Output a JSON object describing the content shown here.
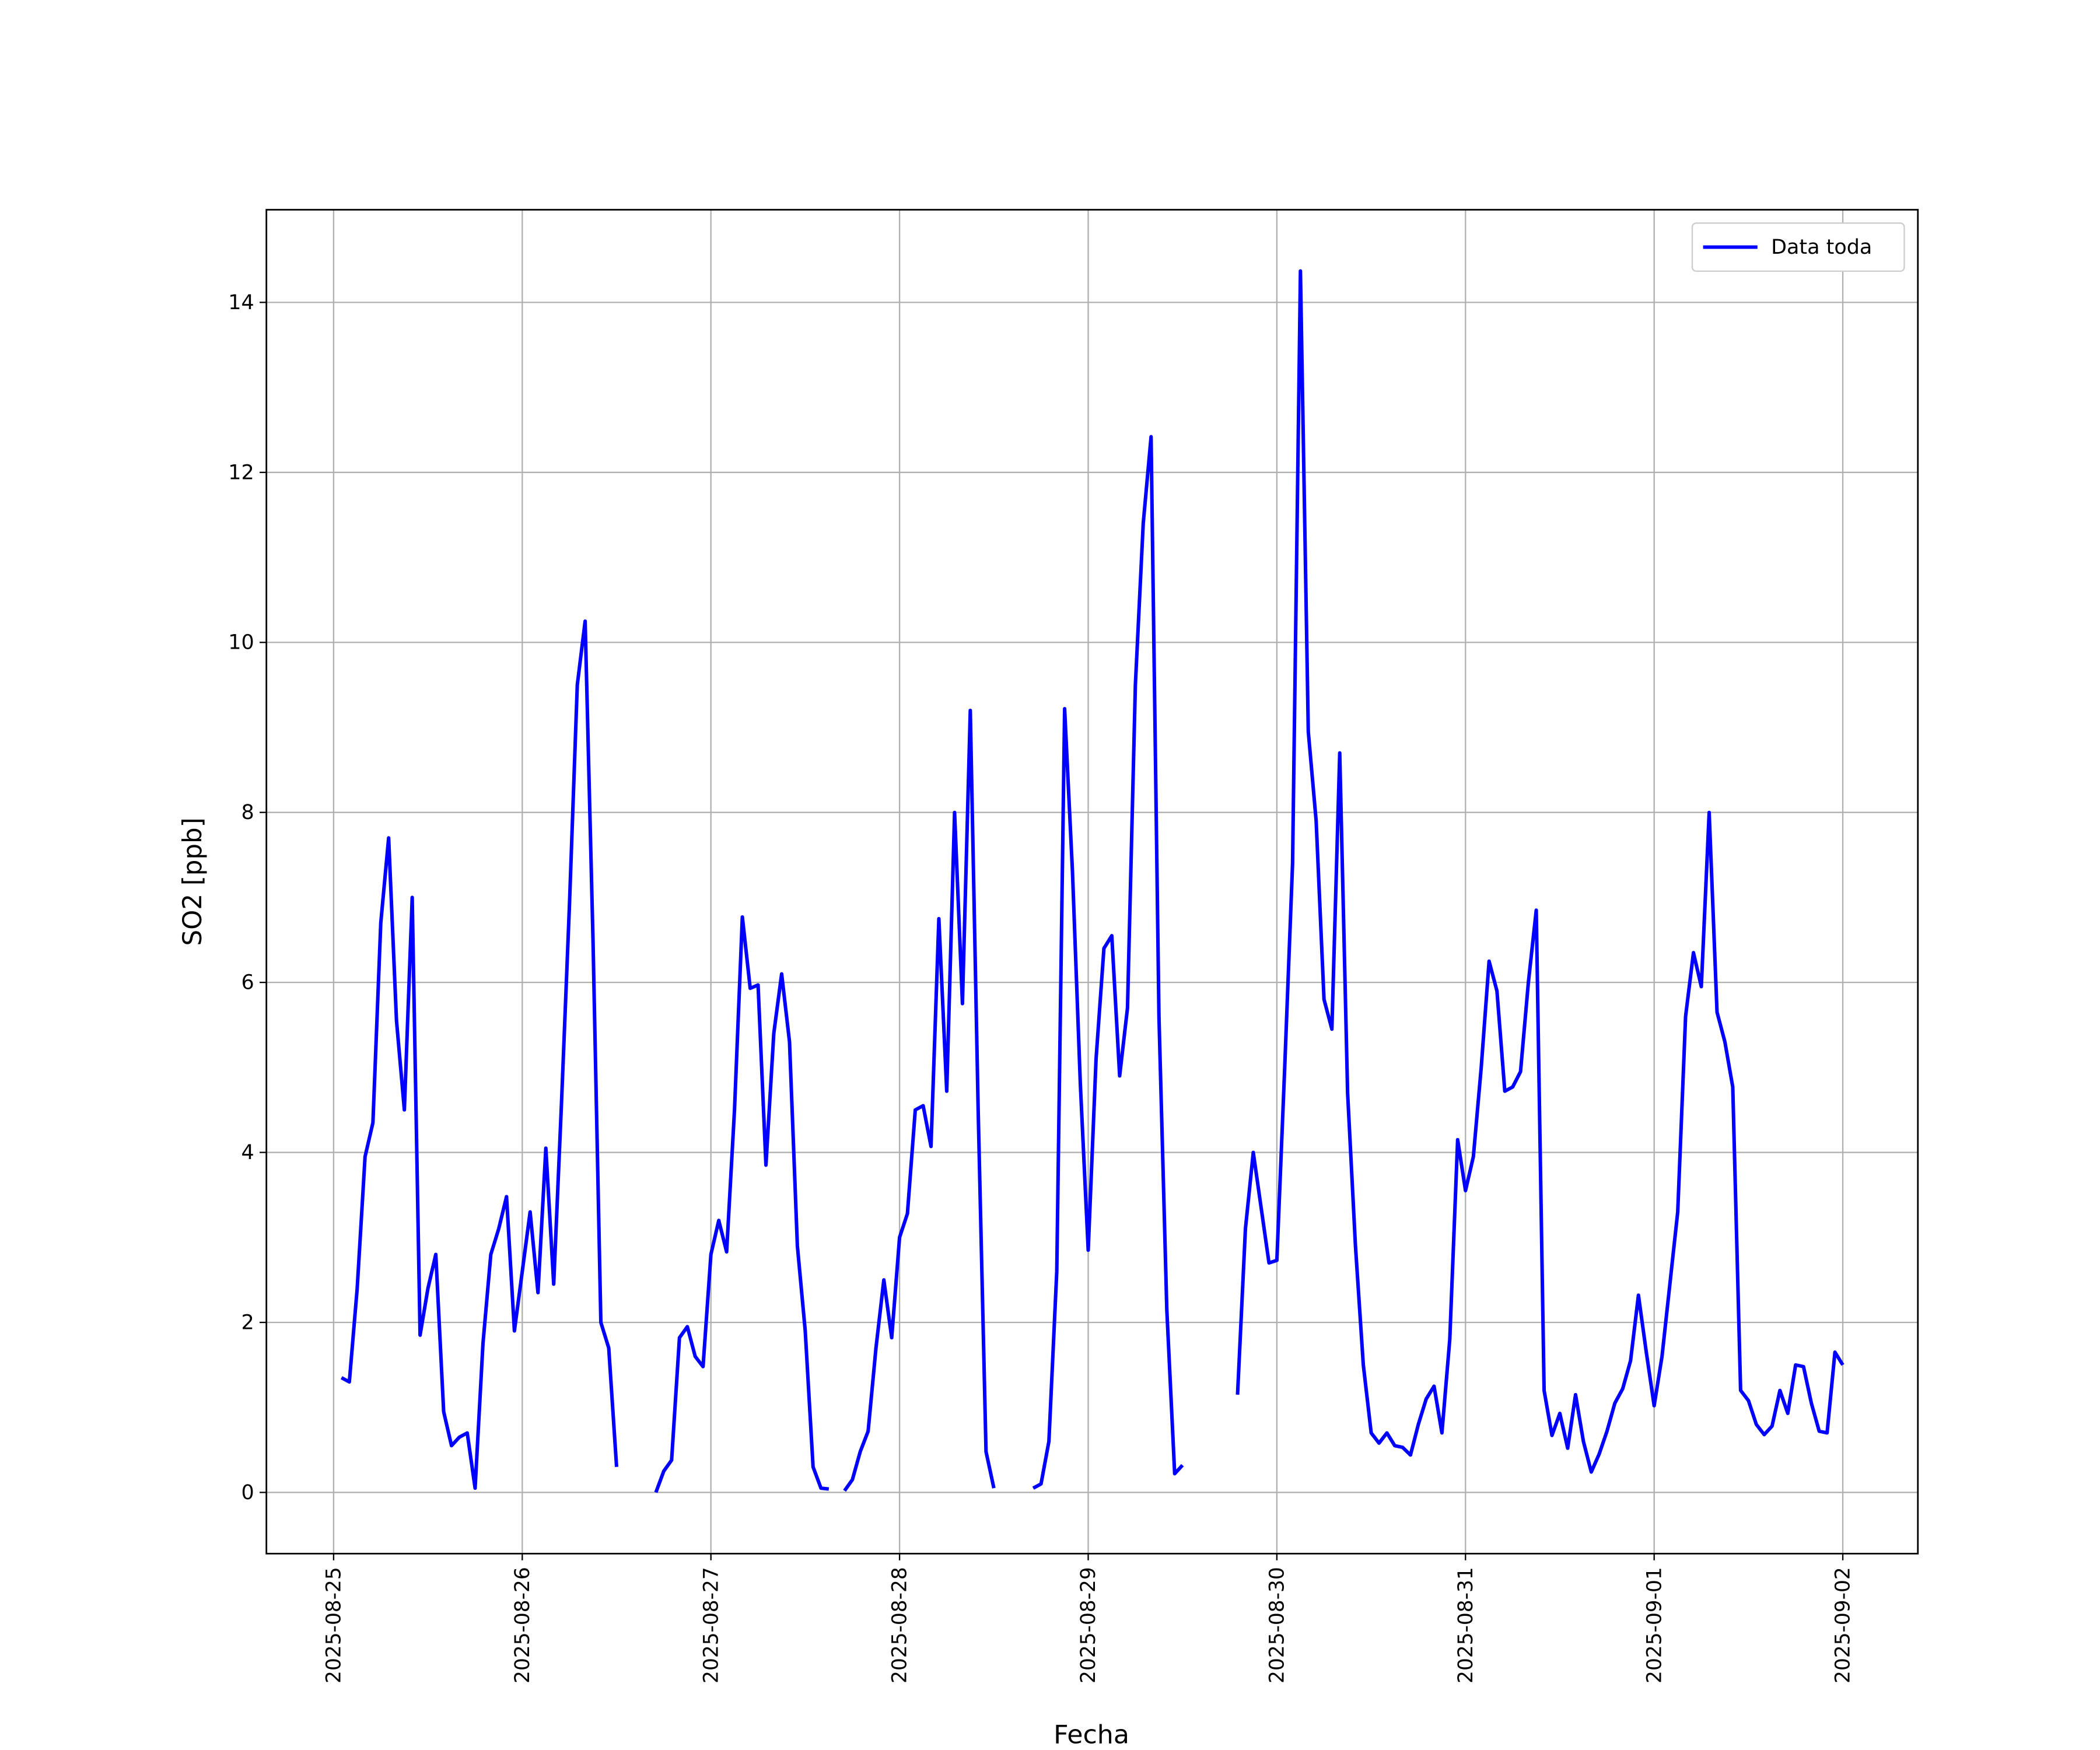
{
  "chart_data": {
    "type": "line",
    "x_label": "Fecha",
    "y_label": "SO2 [ppb]",
    "x": [
      "2025-08-25 01:00",
      "2025-08-25 02:00",
      "2025-08-25 03:00",
      "2025-08-25 04:00",
      "2025-08-25 05:00",
      "2025-08-25 06:00",
      "2025-08-25 07:00",
      "2025-08-25 08:00",
      "2025-08-25 09:00",
      "2025-08-25 10:00",
      "2025-08-25 11:00",
      "2025-08-25 12:00",
      "2025-08-25 13:00",
      "2025-08-25 14:00",
      "2025-08-25 15:00",
      "2025-08-25 16:00",
      "2025-08-25 17:00",
      "2025-08-25 18:00",
      "2025-08-25 19:00",
      "2025-08-25 20:00",
      "2025-08-25 21:00",
      "2025-08-25 22:00",
      "2025-08-25 23:00",
      "2025-08-26 00:00",
      "2025-08-26 01:00",
      "2025-08-26 02:00",
      "2025-08-26 03:00",
      "2025-08-26 04:00",
      "2025-08-26 05:00",
      "2025-08-26 06:00",
      "2025-08-26 07:00",
      "2025-08-26 08:00",
      "2025-08-26 09:00",
      "2025-08-26 10:00",
      "2025-08-26 11:00",
      "2025-08-26 12:00",
      "2025-08-26 13:00",
      "2025-08-26 14:00",
      "2025-08-26 15:00",
      "2025-08-26 16:00",
      "2025-08-26 17:00",
      "2025-08-26 18:00",
      "2025-08-26 19:00",
      "2025-08-26 20:00",
      "2025-08-26 21:00",
      "2025-08-26 22:00",
      "2025-08-26 23:00",
      "2025-08-27 00:00",
      "2025-08-27 01:00",
      "2025-08-27 02:00",
      "2025-08-27 03:00",
      "2025-08-27 04:00",
      "2025-08-27 05:00",
      "2025-08-27 06:00",
      "2025-08-27 07:00",
      "2025-08-27 08:00",
      "2025-08-27 09:00",
      "2025-08-27 10:00",
      "2025-08-27 11:00",
      "2025-08-27 12:00",
      "2025-08-27 13:00",
      "2025-08-27 14:00",
      "2025-08-27 15:00",
      "2025-08-27 16:00",
      "2025-08-27 17:00",
      "2025-08-27 18:00",
      "2025-08-27 19:00",
      "2025-08-27 20:00",
      "2025-08-27 21:00",
      "2025-08-27 22:00",
      "2025-08-27 23:00",
      "2025-08-28 00:00",
      "2025-08-28 01:00",
      "2025-08-28 02:00",
      "2025-08-28 03:00",
      "2025-08-28 04:00",
      "2025-08-28 05:00",
      "2025-08-28 06:00",
      "2025-08-28 07:00",
      "2025-08-28 08:00",
      "2025-08-28 09:00",
      "2025-08-28 10:00",
      "2025-08-28 11:00",
      "2025-08-28 12:00",
      "2025-08-28 13:00",
      "2025-08-28 14:00",
      "2025-08-28 15:00",
      "2025-08-28 16:00",
      "2025-08-28 17:00",
      "2025-08-28 18:00",
      "2025-08-28 19:00",
      "2025-08-28 20:00",
      "2025-08-28 21:00",
      "2025-08-28 22:00",
      "2025-08-28 23:00",
      "2025-08-29 00:00",
      "2025-08-29 01:00",
      "2025-08-29 02:00",
      "2025-08-29 03:00",
      "2025-08-29 04:00",
      "2025-08-29 05:00",
      "2025-08-29 06:00",
      "2025-08-29 07:00",
      "2025-08-29 08:00",
      "2025-08-29 09:00",
      "2025-08-29 10:00",
      "2025-08-29 11:00",
      "2025-08-29 12:00",
      "2025-08-29 13:00",
      "2025-08-29 14:00",
      "2025-08-29 15:00",
      "2025-08-29 16:00",
      "2025-08-29 17:00",
      "2025-08-29 18:00",
      "2025-08-29 19:00",
      "2025-08-29 20:00",
      "2025-08-29 21:00",
      "2025-08-29 22:00",
      "2025-08-29 23:00",
      "2025-08-30 00:00",
      "2025-08-30 01:00",
      "2025-08-30 02:00",
      "2025-08-30 03:00",
      "2025-08-30 04:00",
      "2025-08-30 05:00",
      "2025-08-30 06:00",
      "2025-08-30 07:00",
      "2025-08-30 08:00",
      "2025-08-30 09:00",
      "2025-08-30 10:00",
      "2025-08-30 11:00",
      "2025-08-30 12:00",
      "2025-08-30 13:00",
      "2025-08-30 14:00",
      "2025-08-30 15:00",
      "2025-08-30 16:00",
      "2025-08-30 17:00",
      "2025-08-30 18:00",
      "2025-08-30 19:00",
      "2025-08-30 20:00",
      "2025-08-30 21:00",
      "2025-08-30 22:00",
      "2025-08-30 23:00",
      "2025-08-31 00:00",
      "2025-08-31 01:00",
      "2025-08-31 02:00",
      "2025-08-31 03:00",
      "2025-08-31 04:00",
      "2025-08-31 05:00",
      "2025-08-31 06:00",
      "2025-08-31 07:00",
      "2025-08-31 08:00",
      "2025-08-31 09:00",
      "2025-08-31 10:00",
      "2025-08-31 11:00",
      "2025-08-31 12:00",
      "2025-08-31 13:00",
      "2025-08-31 14:00",
      "2025-08-31 15:00",
      "2025-08-31 16:00",
      "2025-08-31 17:00",
      "2025-08-31 18:00",
      "2025-08-31 19:00",
      "2025-08-31 20:00",
      "2025-08-31 21:00",
      "2025-08-31 22:00",
      "2025-08-31 23:00",
      "2025-09-01 00:00",
      "2025-09-01 01:00",
      "2025-09-01 02:00",
      "2025-09-01 03:00",
      "2025-09-01 04:00",
      "2025-09-01 05:00",
      "2025-09-01 06:00",
      "2025-09-01 07:00",
      "2025-09-01 08:00",
      "2025-09-01 09:00",
      "2025-09-01 10:00",
      "2025-09-01 11:00",
      "2025-09-01 12:00",
      "2025-09-01 13:00",
      "2025-09-01 14:00",
      "2025-09-01 15:00",
      "2025-09-01 16:00",
      "2025-09-01 17:00",
      "2025-09-01 18:00",
      "2025-09-01 19:00",
      "2025-09-01 20:00",
      "2025-09-01 21:00",
      "2025-09-01 22:00",
      "2025-09-01 23:00",
      "2025-09-02 00:00"
    ],
    "series": [
      {
        "name": "Data toda",
        "color": "#0000ff",
        "values": [
          1.35,
          1.3,
          2.4,
          3.95,
          4.35,
          6.7,
          7.7,
          5.55,
          4.5,
          7.0,
          1.85,
          2.4,
          2.8,
          0.95,
          0.55,
          0.65,
          0.7,
          0.05,
          1.75,
          2.8,
          3.1,
          3.48,
          1.9,
          2.6,
          3.3,
          2.35,
          4.05,
          2.45,
          4.6,
          6.9,
          9.5,
          10.25,
          6.5,
          2.0,
          1.7,
          0.3,
          null,
          null,
          null,
          null,
          0,
          0.25,
          0.38,
          1.82,
          1.95,
          1.6,
          1.48,
          2.8,
          3.2,
          2.83,
          4.5,
          6.77,
          5.93,
          5.97,
          3.85,
          5.4,
          6.1,
          5.3,
          2.9,
          1.9,
          0.3,
          0.05,
          0.04,
          null,
          0.02,
          0.15,
          0.48,
          0.72,
          1.7,
          2.5,
          1.82,
          3.0,
          3.28,
          4.5,
          4.55,
          4.07,
          6.75,
          4.72,
          8.0,
          5.75,
          9.2,
          4.5,
          0.48,
          0.05,
          null,
          null,
          null,
          null,
          0.05,
          0.1,
          0.6,
          2.6,
          9.22,
          7.3,
          4.8,
          2.85,
          5.1,
          6.4,
          6.55,
          4.9,
          5.7,
          9.5,
          11.4,
          12.42,
          5.6,
          2.15,
          0.22,
          0.32,
          null,
          null,
          null,
          null,
          null,
          null,
          1.15,
          3.1,
          4.0,
          3.35,
          2.7,
          2.73,
          5.0,
          7.4,
          14.37,
          8.95,
          7.9,
          5.8,
          5.45,
          8.7,
          4.7,
          2.9,
          1.5,
          0.7,
          0.58,
          0.7,
          0.55,
          0.53,
          0.44,
          0.8,
          1.1,
          1.25,
          0.7,
          1.8,
          4.15,
          3.55,
          3.95,
          5.0,
          6.25,
          5.9,
          4.72,
          4.77,
          4.95,
          6.0,
          6.85,
          1.2,
          0.67,
          0.93,
          0.52,
          1.15,
          0.6,
          0.24,
          0.45,
          0.72,
          1.05,
          1.22,
          1.55,
          2.32,
          1.65,
          1.02,
          1.6,
          2.45,
          3.3,
          5.6,
          6.35,
          5.95,
          8.0,
          5.65,
          5.3,
          4.77,
          1.2,
          1.08,
          0.8,
          0.68,
          0.78,
          1.2,
          0.93,
          1.5,
          1.48,
          1.05,
          0.72,
          0.7,
          1.65,
          1.5
        ]
      }
    ],
    "xlim": [
      "2025-08-24 15:27",
      "2025-09-02 09:33"
    ],
    "xticks": [
      "2025-08-25",
      "2025-08-26",
      "2025-08-27",
      "2025-08-28",
      "2025-08-29",
      "2025-08-30",
      "2025-08-31",
      "2025-09-01",
      "2025-09-02"
    ],
    "ylim": [
      -0.72,
      15.09
    ],
    "yticks": [
      0,
      2,
      4,
      6,
      8,
      10,
      12,
      14
    ],
    "grid": true,
    "legend": "upper right"
  }
}
